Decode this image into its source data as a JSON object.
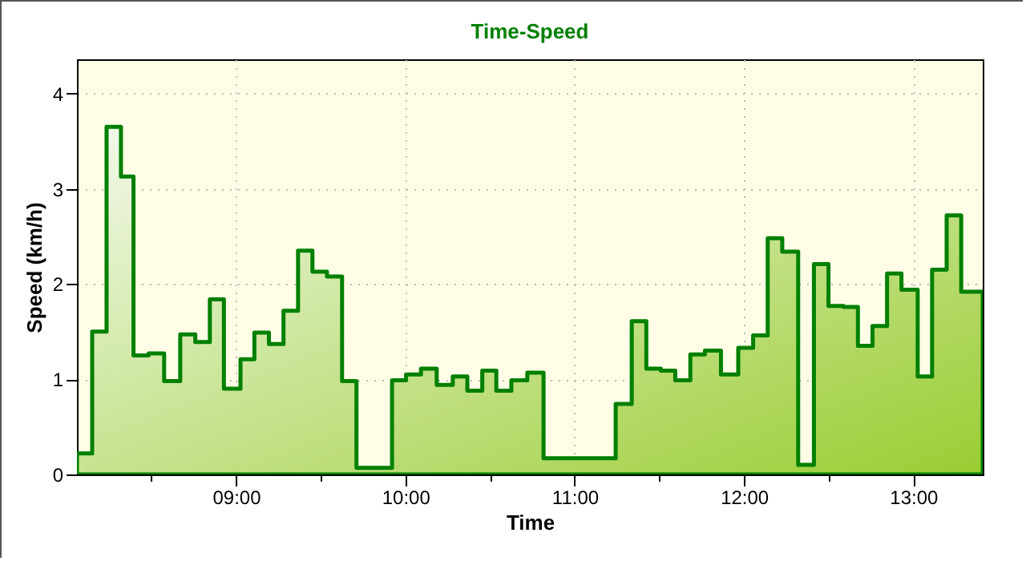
{
  "chart_data": {
    "type": "area",
    "title": "Time-Speed",
    "xlabel": "Time",
    "ylabel": "Speed (km/h)",
    "x": [
      8.06,
      8.15,
      8.235,
      8.32,
      8.394,
      8.483,
      8.575,
      8.67,
      8.759,
      8.845,
      8.928,
      9.026,
      9.108,
      9.194,
      9.28,
      9.366,
      9.451,
      9.537,
      9.626,
      9.711,
      9.921,
      10.004,
      10.092,
      10.185,
      10.28,
      10.366,
      10.454,
      10.537,
      10.626,
      10.72,
      10.816,
      11.242,
      11.337,
      11.423,
      11.509,
      11.594,
      11.683,
      11.769,
      11.864,
      11.966,
      12.054,
      12.14,
      12.226,
      12.32,
      12.413,
      12.499,
      12.588,
      12.673,
      12.759,
      12.845,
      12.93,
      13.026,
      13.111,
      13.197,
      13.283,
      13.41
    ],
    "series": [
      {
        "color": "#008000",
        "values": [
          0.22,
          1.5,
          3.65,
          3.13,
          1.25,
          1.27,
          0.98,
          1.47,
          1.39,
          1.84,
          0.9,
          1.21,
          1.49,
          1.37,
          1.72,
          2.35,
          2.13,
          2.08,
          0.98,
          0.07,
          0.99,
          1.05,
          1.11,
          0.94,
          1.03,
          0.88,
          1.09,
          0.88,
          0.99,
          1.07,
          0.17,
          0.74,
          1.61,
          1.11,
          1.09,
          0.99,
          1.26,
          1.3,
          1.05,
          1.33,
          1.46,
          2.48,
          2.34,
          0.1,
          2.21,
          1.77,
          1.76,
          1.35,
          1.56,
          2.11,
          1.94,
          1.03,
          2.15,
          2.72,
          1.92,
          1.92
        ]
      }
    ],
    "xlim": [
      8.06,
      13.41
    ],
    "xticks": [
      {
        "value": 8.5,
        "label": null
      },
      {
        "value": 9,
        "label": "09:00"
      },
      {
        "value": 9.5,
        "label": null
      },
      {
        "value": 10,
        "label": "10:00"
      },
      {
        "value": 10.5,
        "label": null
      },
      {
        "value": 11,
        "label": "11:00"
      },
      {
        "value": 11.5,
        "label": null
      },
      {
        "value": 12,
        "label": "12:00"
      },
      {
        "value": 12.5,
        "label": null
      },
      {
        "value": 13,
        "label": "13:00"
      }
    ],
    "ylim": [
      0,
      4.36
    ],
    "yticks": [
      0,
      1,
      2,
      3,
      4
    ],
    "grid": true,
    "line_style": "solid"
  }
}
